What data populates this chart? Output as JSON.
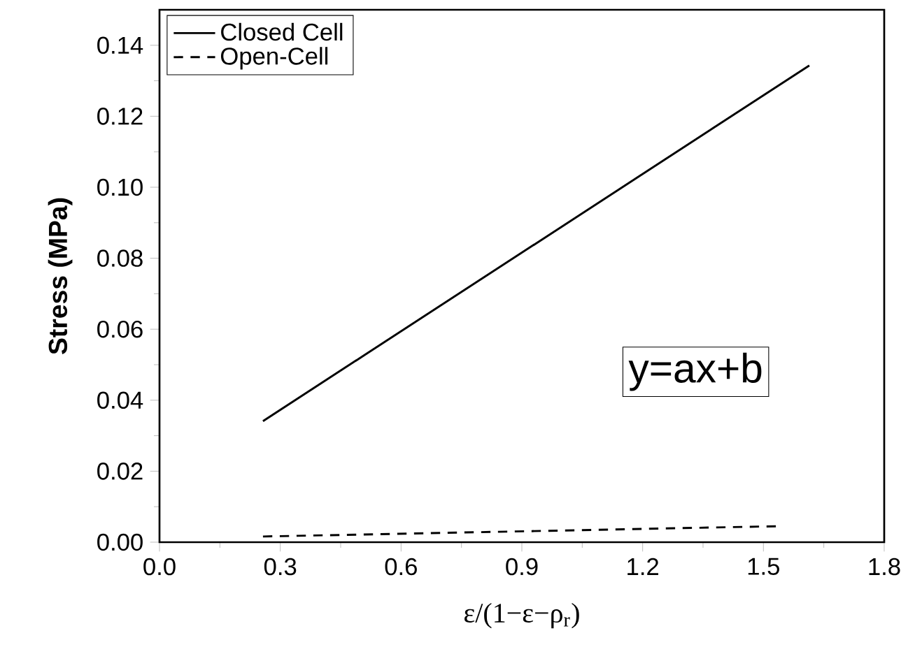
{
  "chart_data": {
    "type": "line",
    "xlabel": "ε/(1−ε−ρ$_{r}$)",
    "ylabel": "Stress (MPa)",
    "xlim": [
      0,
      1.8
    ],
    "xticks": [
      {
        "value": 0,
        "label": "0.0"
      },
      0.3,
      0.6,
      0.9,
      1.2,
      1.5,
      1.8
    ],
    "ylim": [
      0,
      0.15
    ],
    "yticks": [
      {
        "value": 0,
        "label": "0.00"
      },
      0.02,
      0.04,
      0.06,
      0.08,
      {
        "value": 0.1,
        "label": "0.10"
      },
      0.12,
      0.14
    ],
    "legend": "top left",
    "annotations": [
      "y=ax+b"
    ],
    "series": [
      {
        "name": "Closed Cell",
        "color": "#000000",
        "line_style": "solid",
        "x": [
          0.257,
          1.614
        ],
        "values": [
          0.0341,
          0.1343
        ]
      },
      {
        "name": "Open-Cell",
        "color": "#000000",
        "line_style": "dashed",
        "x": [
          0.257,
          1.535
        ],
        "values": [
          0.0016,
          0.0045
        ]
      }
    ]
  }
}
